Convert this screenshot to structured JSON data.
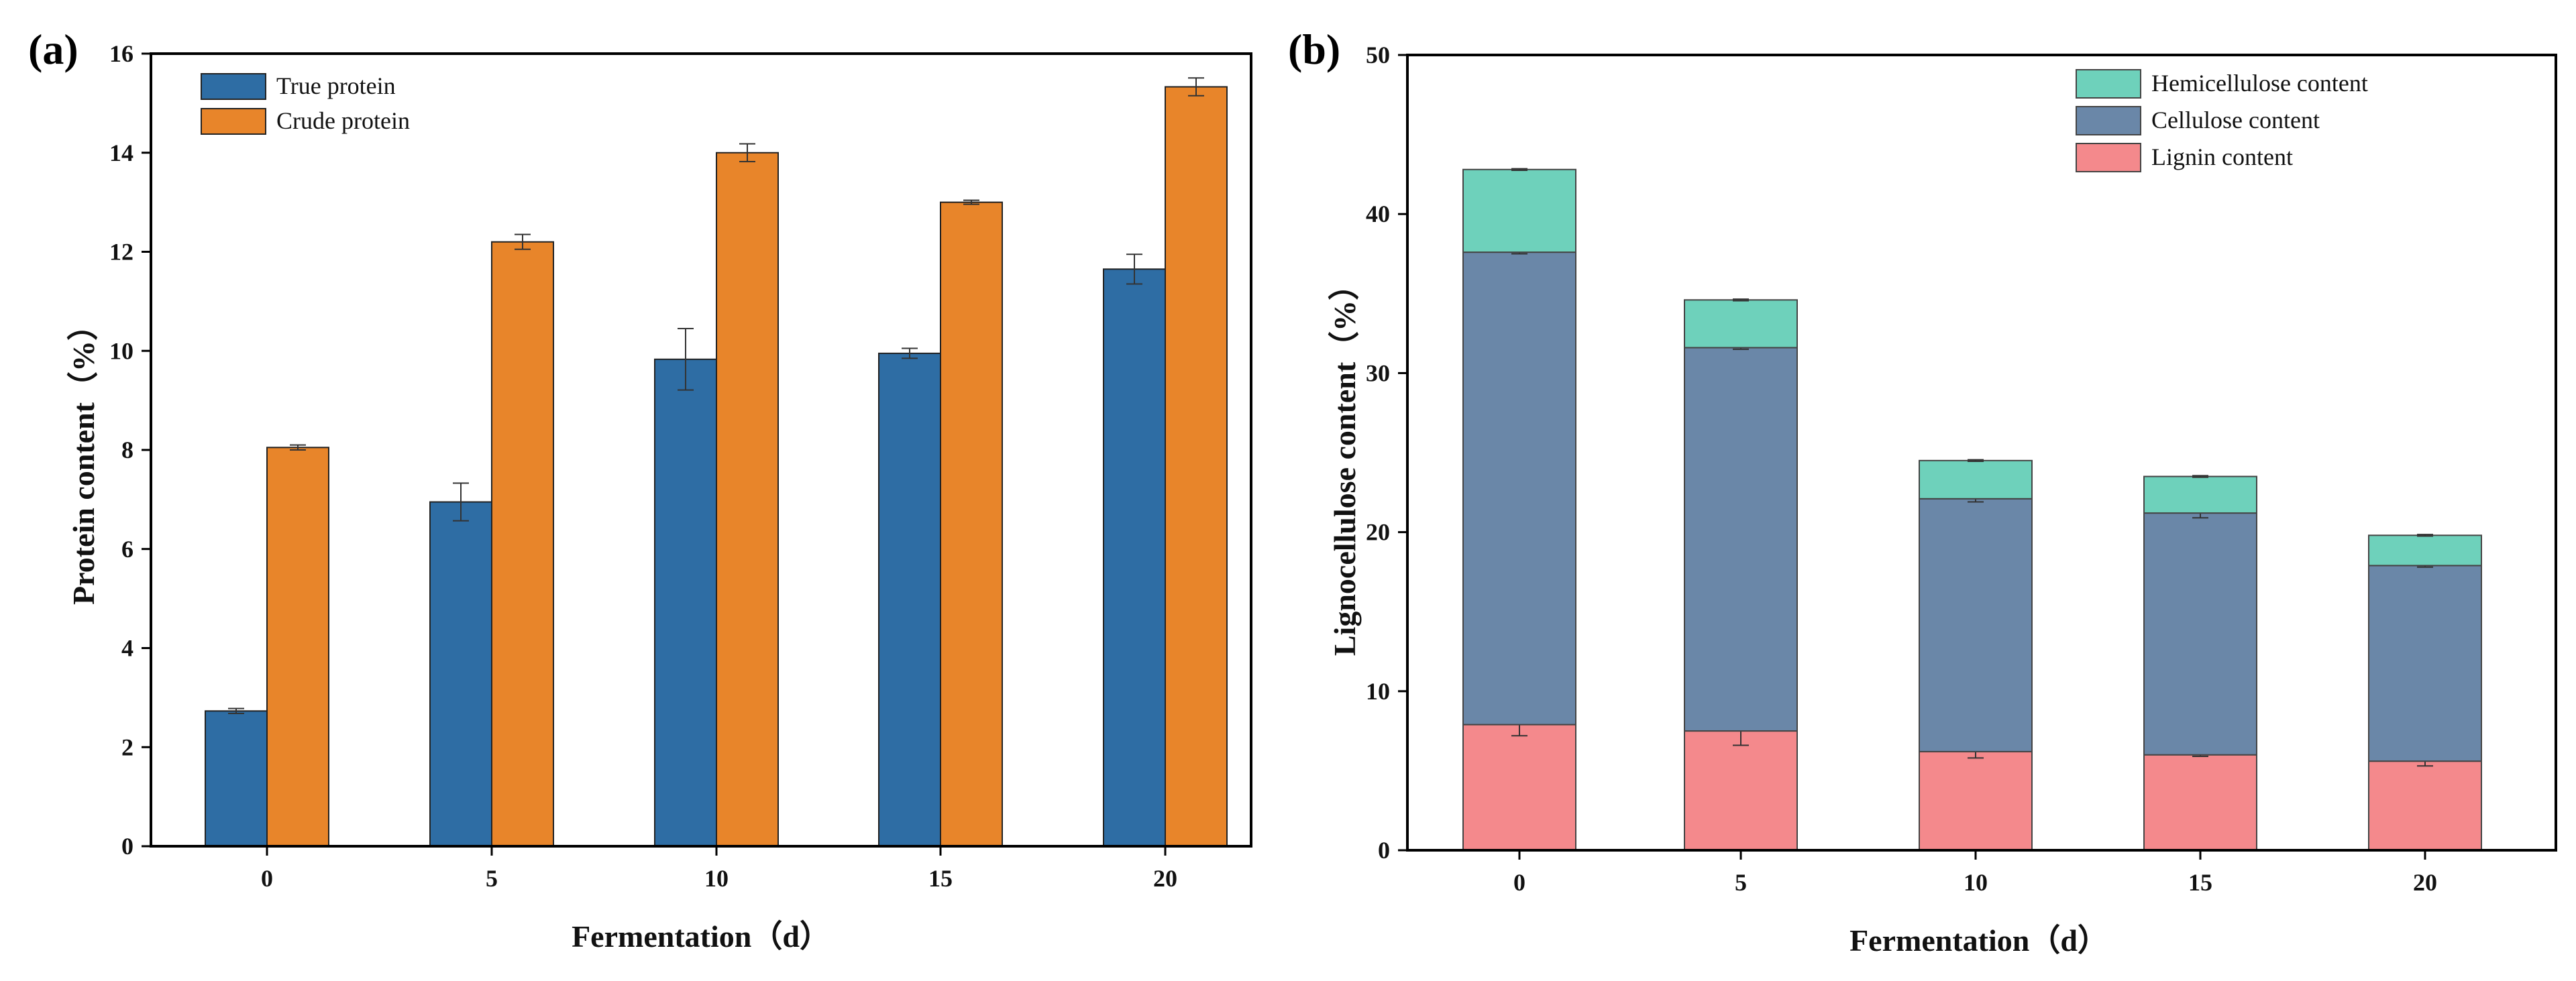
{
  "chart_data": [
    {
      "panel": "(a)",
      "type": "bar",
      "xlabel": "Fermentation（d）",
      "ylabel": "Protein content（%）",
      "ylim": [
        0,
        16
      ],
      "yticks": [
        0,
        2,
        4,
        6,
        8,
        10,
        12,
        14,
        16
      ],
      "categories": [
        "0",
        "5",
        "10",
        "15",
        "20"
      ],
      "legend_position": "top-left",
      "series": [
        {
          "name": "True protein",
          "color": "#2E6DA4",
          "values": [
            2.73,
            6.95,
            9.83,
            9.95,
            11.65
          ],
          "errors": [
            0.05,
            0.38,
            0.62,
            0.1,
            0.3
          ]
        },
        {
          "name": "Crude protein",
          "color": "#E8852A",
          "values": [
            8.05,
            12.2,
            14.0,
            13.0,
            15.33
          ],
          "errors": [
            0.05,
            0.15,
            0.18,
            0.04,
            0.18
          ]
        }
      ]
    },
    {
      "panel": "(b)",
      "type": "stacked-bar",
      "xlabel": "Fermentation（d）",
      "ylabel": "Lignocellulose content（%）",
      "ylim": [
        0,
        50
      ],
      "yticks": [
        0,
        10,
        20,
        30,
        40,
        50
      ],
      "categories": [
        "0",
        "5",
        "10",
        "15",
        "20"
      ],
      "legend_position": "top-right",
      "legend_order": [
        "Hemicellulose content",
        "Cellulose content",
        "Lignin content"
      ],
      "series": [
        {
          "name": "Lignin content",
          "color": "#F4898C",
          "values": [
            7.9,
            7.5,
            6.2,
            6.0,
            5.6
          ],
          "errors": [
            0.7,
            0.9,
            0.4,
            0.1,
            0.3
          ]
        },
        {
          "name": "Cellulose content",
          "color": "#6A87A8",
          "values": [
            29.7,
            24.1,
            15.9,
            15.2,
            12.3
          ],
          "errors": [
            0.1,
            0.1,
            0.2,
            0.3,
            0.1
          ]
        },
        {
          "name": "Hemicellulose content",
          "color": "#6ED1BB",
          "values": [
            5.2,
            3.0,
            2.4,
            2.3,
            1.9
          ],
          "errors": [
            0.05,
            0.05,
            0.05,
            0.05,
            0.05
          ]
        }
      ]
    }
  ]
}
